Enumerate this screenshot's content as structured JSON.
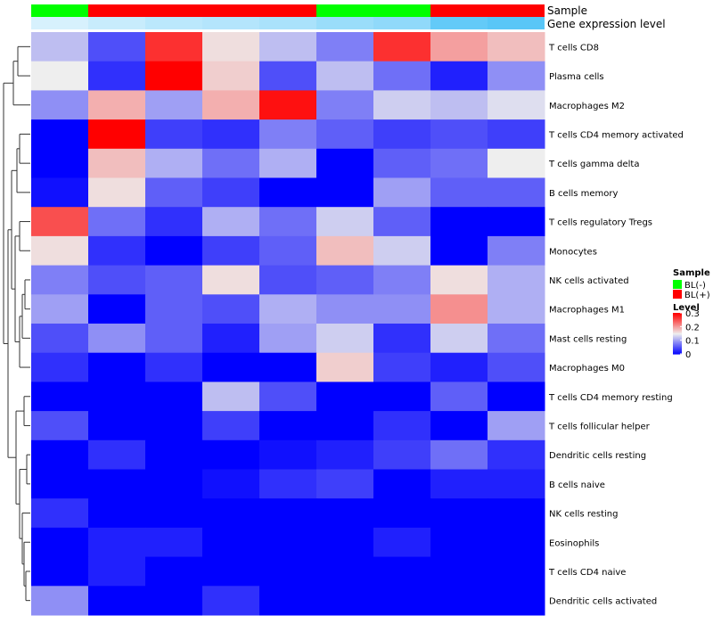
{
  "chart_data": {
    "type": "heatmap",
    "title": "",
    "rows": [
      "T cells CD8",
      "Plasma cells",
      "Macrophages M2",
      "T cells CD4 memory activated",
      "T cells gamma delta",
      "B cells memory",
      "T cells regulatory  Tregs",
      "Monocytes",
      "NK cells activated",
      "Macrophages M1",
      "Mast cells resting",
      "Macrophages M0",
      "T cells CD4 memory resting",
      "T cells follicular helper",
      "Dendritic cells resting",
      "B cells naive",
      "NK cells resting",
      "Eosinophils",
      "T cells CD4 naive",
      "Dendritic cells activated"
    ],
    "columns": 9,
    "values": [
      [
        0.12,
        0.05,
        0.27,
        0.16,
        0.12,
        0.08,
        0.27,
        0.2,
        0.18
      ],
      [
        0.15,
        0.03,
        0.3,
        0.17,
        0.05,
        0.12,
        0.07,
        0.02,
        0.09
      ],
      [
        0.09,
        0.19,
        0.1,
        0.19,
        0.29,
        0.08,
        0.13,
        0.12,
        0.14
      ],
      [
        0.0,
        0.3,
        0.04,
        0.03,
        0.08,
        0.06,
        0.04,
        0.05,
        0.04
      ],
      [
        0.0,
        0.18,
        0.11,
        0.07,
        0.11,
        0.0,
        0.06,
        0.07,
        0.15
      ],
      [
        0.01,
        0.16,
        0.06,
        0.04,
        0.0,
        0.0,
        0.1,
        0.06,
        0.06
      ],
      [
        0.25,
        0.07,
        0.03,
        0.11,
        0.07,
        0.13,
        0.06,
        0.0,
        0.0
      ],
      [
        0.16,
        0.03,
        0.0,
        0.04,
        0.06,
        0.18,
        0.13,
        0.0,
        0.08
      ],
      [
        0.08,
        0.05,
        0.06,
        0.16,
        0.05,
        0.06,
        0.08,
        0.16,
        0.11
      ],
      [
        0.1,
        0.0,
        0.06,
        0.05,
        0.11,
        0.09,
        0.09,
        0.21,
        0.11
      ],
      [
        0.05,
        0.09,
        0.06,
        0.02,
        0.1,
        0.13,
        0.03,
        0.13,
        0.07
      ],
      [
        0.03,
        0.0,
        0.03,
        0.0,
        0.0,
        0.17,
        0.04,
        0.02,
        0.05
      ],
      [
        0.0,
        0.0,
        0.0,
        0.12,
        0.05,
        0.0,
        0.0,
        0.06,
        0.0
      ],
      [
        0.05,
        0.0,
        0.0,
        0.04,
        0.0,
        0.0,
        0.03,
        0.0,
        0.1
      ],
      [
        0.0,
        0.03,
        0.0,
        0.0,
        0.01,
        0.02,
        0.04,
        0.07,
        0.03
      ],
      [
        0.0,
        0.0,
        0.0,
        0.01,
        0.03,
        0.04,
        0.0,
        0.02,
        0.02
      ],
      [
        0.03,
        0.0,
        0.0,
        0.0,
        0.0,
        0.0,
        0.0,
        0.0,
        0.0
      ],
      [
        0.0,
        0.02,
        0.02,
        0.0,
        0.0,
        0.0,
        0.02,
        0.0,
        0.0
      ],
      [
        0.0,
        0.02,
        0.0,
        0.0,
        0.0,
        0.0,
        0.0,
        0.0,
        0.0
      ],
      [
        0.09,
        0.0,
        0.0,
        0.03,
        0.0,
        0.0,
        0.0,
        0.0,
        0.0
      ]
    ],
    "annotations": [
      {
        "name": "Sample",
        "values": [
          "BL(-)",
          "BL(+)",
          "BL(+)",
          "BL(+)",
          "BL(+)",
          "BL(-)",
          "BL(-)",
          "BL(+)",
          "BL(+)"
        ]
      },
      {
        "name": "Gene expression level",
        "values": [
          0.16,
          0.22,
          0.27,
          0.3,
          0.34,
          0.4,
          0.44,
          0.62,
          0.66
        ]
      }
    ],
    "legend": {
      "sample_title": "Sample",
      "sample_entries": [
        {
          "label": "BL(-)",
          "color": "#00ff00"
        },
        {
          "label": "BL(+)",
          "color": "#ff0000"
        }
      ],
      "level_title": "Level",
      "level_ticks": [
        "0.3",
        "0.2",
        "0.1",
        "0"
      ],
      "level_tick_values": [
        0.3,
        0.2,
        0.1,
        0
      ],
      "placement": "right"
    },
    "colors": {
      "low": "#0000ff",
      "mid": "#eeeeee",
      "high": "#ff0000",
      "mid_value": 0.15,
      "max_value": 0.3,
      "gene_expr_low": "#ffffff",
      "gene_expr_high": "#4fc3f7"
    },
    "dendrogram": "row-clustering-tree"
  }
}
